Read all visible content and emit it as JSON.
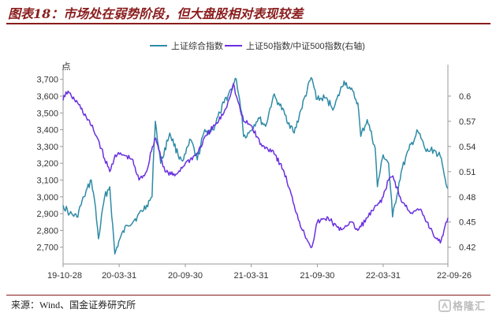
{
  "figure_title": "图表18：市场处在弱势阶段，但大盘股相对表现较差",
  "source": "来源：Wind、国金证券研究所",
  "watermark": "格隆汇",
  "colors": {
    "series1": "#2e8ba6",
    "series2": "#6a2fe0",
    "title": "#8a1d1d",
    "axis": "#999999"
  },
  "chart_data": {
    "type": "line",
    "left_axis_unit": "点",
    "y_left": {
      "min": 2600,
      "max": 3750,
      "ticks": [
        2700,
        2800,
        2900,
        3000,
        3100,
        3200,
        3300,
        3400,
        3500,
        3600,
        3700
      ],
      "tick_labels": [
        "2,700",
        "2,800",
        "2,900",
        "3,000",
        "3,100",
        "3,200",
        "3,300",
        "3,400",
        "3,500",
        "3,600",
        "3,700"
      ]
    },
    "y_right": {
      "min": 0.4,
      "max": 0.63,
      "ticks": [
        0.42,
        0.45,
        0.48,
        0.51,
        0.54,
        0.57,
        0.6
      ],
      "tick_labels": [
        "0.42",
        "0.45",
        "0.48",
        "0.51",
        "0.54",
        "0.57",
        "0.6"
      ]
    },
    "x_range": [
      "2019-10-28",
      "2022-09-26"
    ],
    "x_ticks": [
      "2019-10-28",
      "2020-03-31",
      "2020-09-30",
      "2021-03-31",
      "2021-09-30",
      "2022-03-31",
      "2022-09-26"
    ],
    "x_tick_labels": [
      "19-10-28",
      "20-03-31",
      "20-09-30",
      "21-03-31",
      "21-09-30",
      "22-03-31",
      "22-09-26"
    ],
    "legend_position": "top",
    "series": [
      {
        "name": "上证综合指数",
        "axis": "left",
        "color": "#2e8ba6",
        "points": [
          [
            "2019-10-28",
            2950
          ],
          [
            "2019-11-15",
            2900
          ],
          [
            "2019-12-05",
            2880
          ],
          [
            "2019-12-25",
            3000
          ],
          [
            "2020-01-14",
            3100
          ],
          [
            "2020-01-23",
            2980
          ],
          [
            "2020-02-03",
            2750
          ],
          [
            "2020-02-20",
            3000
          ],
          [
            "2020-03-05",
            3060
          ],
          [
            "2020-03-19",
            2660
          ],
          [
            "2020-04-02",
            2750
          ],
          [
            "2020-04-22",
            2830
          ],
          [
            "2020-05-20",
            2880
          ],
          [
            "2020-06-15",
            2950
          ],
          [
            "2020-06-30",
            3000
          ],
          [
            "2020-07-06",
            3330
          ],
          [
            "2020-07-09",
            3450
          ],
          [
            "2020-07-24",
            3200
          ],
          [
            "2020-08-18",
            3380
          ],
          [
            "2020-09-10",
            3250
          ],
          [
            "2020-09-25",
            3220
          ],
          [
            "2020-10-15",
            3340
          ],
          [
            "2020-11-02",
            3220
          ],
          [
            "2020-11-20",
            3380
          ],
          [
            "2020-12-15",
            3400
          ],
          [
            "2021-01-04",
            3500
          ],
          [
            "2021-01-15",
            3560
          ],
          [
            "2021-02-18",
            3700
          ],
          [
            "2021-03-05",
            3500
          ],
          [
            "2021-03-10",
            3360
          ],
          [
            "2021-03-25",
            3380
          ],
          [
            "2021-04-20",
            3470
          ],
          [
            "2021-05-10",
            3420
          ],
          [
            "2021-05-31",
            3600
          ],
          [
            "2021-06-15",
            3560
          ],
          [
            "2021-07-28",
            3380
          ],
          [
            "2021-08-16",
            3520
          ],
          [
            "2021-09-13",
            3710
          ],
          [
            "2021-09-30",
            3580
          ],
          [
            "2021-10-20",
            3590
          ],
          [
            "2021-11-15",
            3530
          ],
          [
            "2021-12-13",
            3690
          ],
          [
            "2021-12-31",
            3640
          ],
          [
            "2022-01-20",
            3560
          ],
          [
            "2022-01-28",
            3360
          ],
          [
            "2022-02-15",
            3460
          ],
          [
            "2022-03-09",
            3290
          ],
          [
            "2022-03-15",
            3060
          ],
          [
            "2022-03-31",
            3250
          ],
          [
            "2022-04-15",
            3200
          ],
          [
            "2022-04-26",
            2880
          ],
          [
            "2022-05-20",
            3150
          ],
          [
            "2022-06-10",
            3280
          ],
          [
            "2022-07-05",
            3390
          ],
          [
            "2022-07-28",
            3270
          ],
          [
            "2022-08-18",
            3280
          ],
          [
            "2022-09-05",
            3240
          ],
          [
            "2022-09-16",
            3130
          ],
          [
            "2022-09-26",
            3050
          ]
        ]
      },
      {
        "name": "上证50指数/中证500指数(右轴)",
        "axis": "right",
        "color": "#6a2fe0",
        "points": [
          [
            "2019-10-28",
            0.595
          ],
          [
            "2019-11-05",
            0.605
          ],
          [
            "2019-11-20",
            0.6
          ],
          [
            "2019-12-10",
            0.59
          ],
          [
            "2019-12-31",
            0.575
          ],
          [
            "2020-01-20",
            0.56
          ],
          [
            "2020-02-05",
            0.545
          ],
          [
            "2020-02-20",
            0.525
          ],
          [
            "2020-03-05",
            0.51
          ],
          [
            "2020-03-20",
            0.53
          ],
          [
            "2020-04-10",
            0.53
          ],
          [
            "2020-05-05",
            0.525
          ],
          [
            "2020-05-25",
            0.5
          ],
          [
            "2020-06-15",
            0.51
          ],
          [
            "2020-07-01",
            0.54
          ],
          [
            "2020-07-10",
            0.55
          ],
          [
            "2020-08-05",
            0.51
          ],
          [
            "2020-09-01",
            0.505
          ],
          [
            "2020-09-30",
            0.52
          ],
          [
            "2020-10-30",
            0.53
          ],
          [
            "2020-11-30",
            0.555
          ],
          [
            "2020-12-31",
            0.57
          ],
          [
            "2021-01-20",
            0.585
          ],
          [
            "2021-02-10",
            0.615
          ],
          [
            "2021-02-18",
            0.6
          ],
          [
            "2021-03-10",
            0.57
          ],
          [
            "2021-03-31",
            0.565
          ],
          [
            "2021-04-30",
            0.54
          ],
          [
            "2021-05-31",
            0.535
          ],
          [
            "2021-06-30",
            0.51
          ],
          [
            "2021-07-28",
            0.47
          ],
          [
            "2021-08-20",
            0.44
          ],
          [
            "2021-09-15",
            0.42
          ],
          [
            "2021-09-30",
            0.45
          ],
          [
            "2021-10-30",
            0.455
          ],
          [
            "2021-11-30",
            0.44
          ],
          [
            "2021-12-31",
            0.45
          ],
          [
            "2022-01-20",
            0.44
          ],
          [
            "2022-02-15",
            0.455
          ],
          [
            "2022-03-15",
            0.47
          ],
          [
            "2022-03-31",
            0.48
          ],
          [
            "2022-04-15",
            0.5
          ],
          [
            "2022-04-27",
            0.505
          ],
          [
            "2022-05-20",
            0.475
          ],
          [
            "2022-06-20",
            0.46
          ],
          [
            "2022-07-10",
            0.465
          ],
          [
            "2022-07-30",
            0.45
          ],
          [
            "2022-08-25",
            0.43
          ],
          [
            "2022-09-05",
            0.425
          ],
          [
            "2022-09-15",
            0.44
          ],
          [
            "2022-09-26",
            0.455
          ]
        ]
      }
    ]
  }
}
